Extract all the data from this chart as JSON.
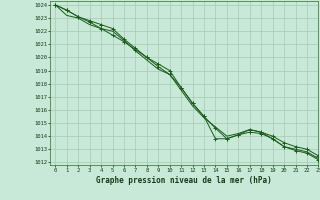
{
  "title": "Graphe pression niveau de la mer (hPa)",
  "background_color": "#c8e8d8",
  "grid_color": "#a8c8b8",
  "line_color": "#1a5c1a",
  "xlim": [
    -0.5,
    23
  ],
  "ylim": [
    1011.8,
    1024.3
  ],
  "yticks": [
    1012,
    1013,
    1014,
    1015,
    1016,
    1017,
    1018,
    1019,
    1020,
    1021,
    1022,
    1023,
    1024
  ],
  "xticks": [
    0,
    1,
    2,
    3,
    4,
    5,
    6,
    7,
    8,
    9,
    10,
    11,
    12,
    13,
    14,
    15,
    16,
    17,
    18,
    19,
    20,
    21,
    22,
    23
  ],
  "s1_x": [
    0,
    1,
    2,
    3,
    4,
    5,
    6,
    7,
    8,
    9,
    10,
    11,
    12,
    13,
    14,
    15,
    16,
    17,
    18,
    19,
    20,
    21,
    22,
    23
  ],
  "s1_y": [
    1024.0,
    1023.6,
    1023.1,
    1022.7,
    1022.2,
    1021.7,
    1021.2,
    1020.6,
    1020.0,
    1019.5,
    1019.0,
    1017.7,
    1016.5,
    1015.5,
    1013.8,
    1013.8,
    1014.1,
    1014.3,
    1014.2,
    1013.8,
    1013.2,
    1012.9,
    1012.7,
    1012.2
  ],
  "s2_x": [
    0,
    1,
    2,
    3,
    4,
    5,
    6,
    7,
    8,
    9,
    10,
    11,
    12,
    13,
    14,
    15,
    16,
    17,
    18,
    19,
    20,
    21,
    22,
    23
  ],
  "s2_y": [
    1024.0,
    1023.2,
    1023.0,
    1022.5,
    1022.2,
    1022.0,
    1021.3,
    1020.5,
    1019.8,
    1019.1,
    1018.7,
    1017.5,
    1016.3,
    1015.4,
    1014.7,
    1014.0,
    1014.2,
    1014.5,
    1014.3,
    1013.8,
    1013.2,
    1013.0,
    1012.8,
    1012.3
  ],
  "s3_x": [
    0,
    1,
    2,
    3,
    4,
    5,
    6,
    7,
    8,
    9,
    10,
    11,
    12,
    13,
    14,
    15,
    16,
    17,
    18,
    19,
    20,
    21,
    22,
    23
  ],
  "s3_y": [
    1024.0,
    1023.6,
    1023.1,
    1022.8,
    1022.5,
    1022.2,
    1021.4,
    1020.7,
    1020.0,
    1019.3,
    1018.7,
    1017.7,
    1016.5,
    1015.5,
    1014.6,
    1013.8,
    1014.1,
    1014.5,
    1014.3,
    1014.0,
    1013.5,
    1013.2,
    1013.0,
    1012.5
  ]
}
